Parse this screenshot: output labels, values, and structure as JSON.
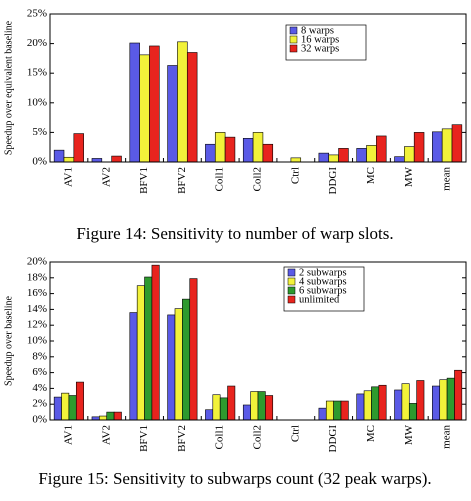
{
  "chart_data": [
    {
      "type": "bar",
      "ylabel": "Speedup over equivalent baseline",
      "caption": "Figure 14: Sensitivity to number of warp slots.",
      "categories": [
        "AV1",
        "AV2",
        "BFV1",
        "BFV2",
        "Coll1",
        "Coll2",
        "Ctrl",
        "DDGI",
        "MC",
        "MW",
        "mean"
      ],
      "series": [
        {
          "name": "8 warps",
          "color": "#5a5ae6",
          "values": [
            2.0,
            0.6,
            20.1,
            16.3,
            3.0,
            4.0,
            0,
            1.5,
            2.3,
            0.9,
            5.1
          ]
        },
        {
          "name": "16 warps",
          "color": "#f2f23a",
          "values": [
            0.8,
            0,
            18.1,
            20.3,
            5.0,
            5.0,
            0.7,
            1.2,
            2.8,
            2.6,
            5.6
          ]
        },
        {
          "name": "32 warps",
          "color": "#e8241e",
          "values": [
            4.8,
            1.0,
            19.6,
            18.5,
            4.2,
            3.0,
            0,
            2.3,
            4.4,
            5.0,
            6.3
          ]
        }
      ],
      "ylim": [
        0,
        25
      ],
      "yticks": [
        {
          "value": 0,
          "label": "0%"
        },
        {
          "value": 5,
          "label": "5%"
        },
        {
          "value": 10,
          "label": "10%"
        },
        {
          "value": 15,
          "label": "15%"
        },
        {
          "value": 20,
          "label": "20%"
        },
        {
          "value": 25,
          "label": "25%"
        }
      ]
    },
    {
      "type": "bar",
      "ylabel": "Speedup over baseline",
      "caption": "Figure 15: Sensitivity to subwarps count (32 peak warps).",
      "categories": [
        "AV1",
        "AV2",
        "BFV1",
        "BFV2",
        "Coll1",
        "Coll2",
        "Ctrl",
        "DDGI",
        "MC",
        "MW",
        "mean"
      ],
      "series": [
        {
          "name": "2 subwarps",
          "color": "#5a5ae6",
          "values": [
            2.9,
            0.4,
            13.6,
            13.3,
            1.3,
            1.9,
            0,
            1.5,
            3.3,
            3.8,
            4.3
          ]
        },
        {
          "name": "4 subwarps",
          "color": "#f2f23a",
          "values": [
            3.4,
            0.5,
            17.0,
            14.1,
            3.2,
            3.6,
            0,
            2.4,
            3.7,
            4.6,
            5.1
          ]
        },
        {
          "name": "6 subwarps",
          "color": "#2e9a2e",
          "values": [
            3.1,
            1.0,
            18.1,
            15.3,
            2.8,
            3.6,
            0,
            2.4,
            4.2,
            2.1,
            5.3
          ]
        },
        {
          "name": "unlimited",
          "color": "#e8241e",
          "values": [
            4.8,
            1.0,
            19.6,
            17.9,
            4.3,
            3.1,
            0,
            2.4,
            4.4,
            5.0,
            6.3
          ]
        }
      ],
      "ylim": [
        0,
        20
      ],
      "yticks": [
        {
          "value": 0,
          "label": "0%"
        },
        {
          "value": 2,
          "label": "2%"
        },
        {
          "value": 4,
          "label": "4%"
        },
        {
          "value": 6,
          "label": "6%"
        },
        {
          "value": 8,
          "label": "8%"
        },
        {
          "value": 10,
          "label": "10%"
        },
        {
          "value": 12,
          "label": "12%"
        },
        {
          "value": 14,
          "label": "14%"
        },
        {
          "value": 16,
          "label": "16%"
        },
        {
          "value": 18,
          "label": "18%"
        },
        {
          "value": 20,
          "label": "20%"
        }
      ]
    }
  ]
}
